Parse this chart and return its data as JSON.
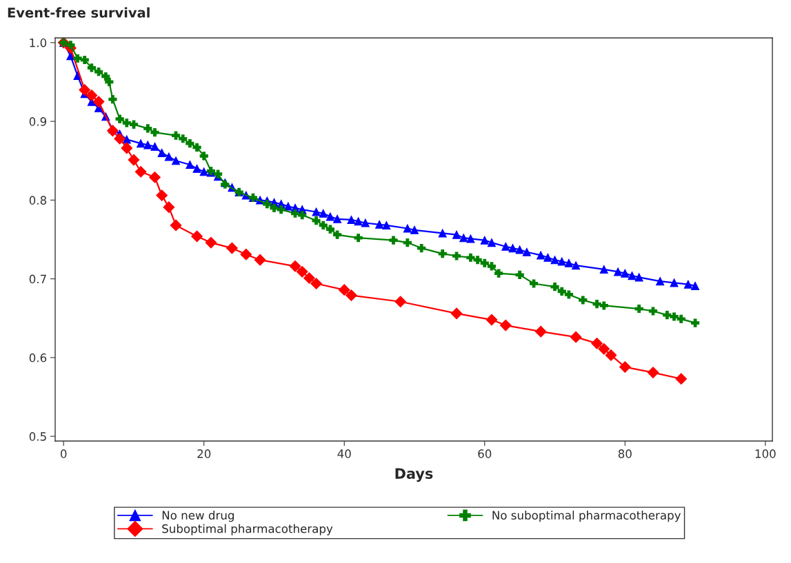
{
  "chart_data": {
    "type": "line",
    "ylabel": "Event-free survival",
    "xlabel": "Days",
    "xlim": [
      -1.2,
      101
    ],
    "xticks": [
      0,
      20,
      40,
      60,
      80,
      100
    ],
    "ylim": [
      0.494,
      1.006
    ],
    "yticks": [
      {
        "value": 0.5,
        "label": "0.5"
      },
      {
        "value": 0.6,
        "label": "0.6"
      },
      {
        "value": 0.7,
        "label": "0.7"
      },
      {
        "value": 0.8,
        "label": "0.8"
      },
      {
        "value": 0.9,
        "label": "0.9"
      },
      {
        "value": 1.0,
        "label": "1.0"
      }
    ],
    "grid": false,
    "legend": "bottom",
    "line_style": "solid",
    "series": [
      {
        "name": "No new drug",
        "color": "#0000ff",
        "marker": "triangle",
        "x": [
          0,
          1,
          2,
          3,
          4,
          5,
          6,
          7,
          8,
          9,
          11,
          12,
          13,
          14,
          15,
          16,
          18,
          19,
          20,
          21,
          22,
          23,
          24,
          25,
          26,
          27,
          28,
          29,
          30,
          31,
          32,
          33,
          34,
          36,
          37,
          38,
          39,
          41,
          42,
          43,
          45,
          46,
          49,
          50,
          54,
          56,
          57,
          58,
          60,
          61,
          63,
          64,
          65,
          66,
          68,
          69,
          70,
          71,
          72,
          73,
          77,
          79,
          80,
          81,
          82,
          85,
          87,
          89,
          90
        ],
        "values": [
          1.0,
          0.983,
          0.958,
          0.935,
          0.925,
          0.917,
          0.906,
          0.89,
          0.884,
          0.877,
          0.872,
          0.87,
          0.868,
          0.86,
          0.855,
          0.85,
          0.845,
          0.84,
          0.836,
          0.835,
          0.83,
          0.822,
          0.816,
          0.81,
          0.806,
          0.803,
          0.8,
          0.799,
          0.797,
          0.795,
          0.792,
          0.79,
          0.788,
          0.785,
          0.783,
          0.779,
          0.776,
          0.775,
          0.773,
          0.771,
          0.769,
          0.768,
          0.764,
          0.762,
          0.758,
          0.756,
          0.752,
          0.751,
          0.749,
          0.746,
          0.741,
          0.739,
          0.737,
          0.734,
          0.73,
          0.727,
          0.724,
          0.722,
          0.72,
          0.717,
          0.712,
          0.709,
          0.707,
          0.704,
          0.702,
          0.697,
          0.695,
          0.693,
          0.691
        ]
      },
      {
        "name": "Suboptimal pharmacotherapy",
        "color": "#ff0000",
        "marker": "diamond",
        "x": [
          0,
          1,
          3,
          4,
          5,
          7,
          8,
          9,
          10,
          11,
          13,
          14,
          15,
          16,
          19,
          21,
          24,
          26,
          28,
          33,
          34,
          35,
          36,
          40,
          41,
          48,
          56,
          61,
          63,
          68,
          73,
          76,
          77,
          78,
          80,
          84,
          88
        ],
        "values": [
          1.0,
          0.993,
          0.94,
          0.933,
          0.925,
          0.888,
          0.878,
          0.866,
          0.851,
          0.836,
          0.829,
          0.806,
          0.791,
          0.768,
          0.754,
          0.746,
          0.739,
          0.731,
          0.724,
          0.716,
          0.709,
          0.701,
          0.694,
          0.686,
          0.679,
          0.671,
          0.656,
          0.648,
          0.641,
          0.633,
          0.626,
          0.618,
          0.611,
          0.603,
          0.588,
          0.581,
          0.573
        ]
      },
      {
        "name": "No suboptimal pharmacotherapy",
        "color": "#008000",
        "marker": "cross",
        "x": [
          0,
          1,
          2,
          3,
          4,
          5,
          6,
          6.5,
          7,
          8,
          9,
          10,
          12,
          13,
          16,
          17,
          18,
          19,
          20,
          21,
          22,
          23,
          25,
          27,
          29,
          30,
          31,
          33,
          34,
          36,
          37,
          38,
          39,
          42,
          47,
          49,
          51,
          54,
          56,
          58,
          59,
          60,
          61,
          62,
          65,
          67,
          70,
          71,
          72,
          74,
          76,
          77,
          82,
          84,
          86,
          87,
          88,
          90
        ],
        "values": [
          1.0,
          0.997,
          0.98,
          0.978,
          0.968,
          0.963,
          0.957,
          0.95,
          0.928,
          0.903,
          0.898,
          0.896,
          0.891,
          0.886,
          0.882,
          0.878,
          0.872,
          0.867,
          0.856,
          0.837,
          0.833,
          0.82,
          0.81,
          0.803,
          0.795,
          0.79,
          0.788,
          0.783,
          0.781,
          0.774,
          0.768,
          0.763,
          0.756,
          0.752,
          0.749,
          0.746,
          0.739,
          0.732,
          0.729,
          0.727,
          0.724,
          0.72,
          0.716,
          0.707,
          0.705,
          0.694,
          0.69,
          0.684,
          0.68,
          0.673,
          0.668,
          0.666,
          0.662,
          0.659,
          0.654,
          0.652,
          0.649,
          0.644
        ]
      }
    ]
  }
}
